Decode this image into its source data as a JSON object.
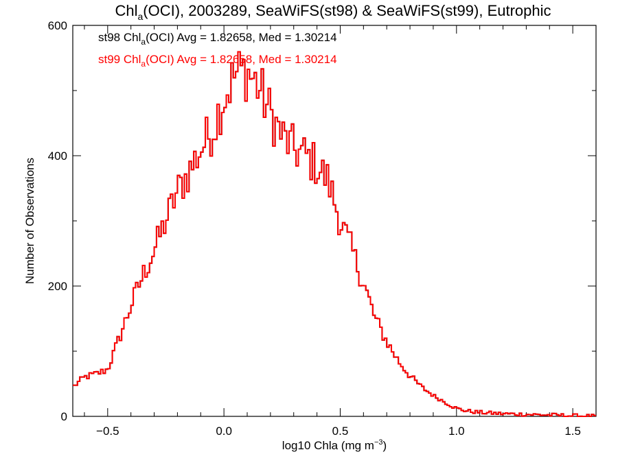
{
  "chart_data": {
    "type": "histogram",
    "title": {
      "prefix": "Chl",
      "sub": "a",
      "suffix": "(OCI), 2003289, SeaWiFS(st98) & SeaWiFS(st99), Eutrophic"
    },
    "xlabel": {
      "prefix": "log10 Chla (mg m",
      "sup": "−3",
      "suffix": ")"
    },
    "ylabel": "Number of Observations",
    "xlim": [
      -0.65,
      1.6
    ],
    "ylim": [
      0,
      600
    ],
    "xticks": [
      -0.5,
      0.0,
      0.5,
      1.0,
      1.5
    ],
    "xtick_labels": [
      "−0.5",
      "0.0",
      "0.5",
      "1.0",
      "1.5"
    ],
    "yticks": [
      0,
      200,
      400,
      600
    ],
    "ytick_labels": [
      "0",
      "200",
      "400",
      "600"
    ],
    "grid": false,
    "annotations": [
      {
        "color": "#000000",
        "prefix": "st98 Chl",
        "sub": "a",
        "suffix": "(OCI) Avg = 1.82658, Med = 1.30214"
      },
      {
        "color": "#ff0000",
        "prefix": "st99 Chl",
        "sub": "a",
        "suffix": "(OCI) Avg = 1.82658, Med = 1.30214"
      }
    ],
    "series": [
      {
        "name": "st98",
        "color": "#000000"
      },
      {
        "name": "st99",
        "color": "#ff0000"
      }
    ],
    "x_anchors": [
      -0.65,
      -0.6,
      -0.55,
      -0.5,
      -0.45,
      -0.4,
      -0.35,
      -0.3,
      -0.25,
      -0.2,
      -0.15,
      -0.1,
      -0.05,
      0.0,
      0.05,
      0.1,
      0.15,
      0.2,
      0.25,
      0.3,
      0.35,
      0.4,
      0.45,
      0.5,
      0.55,
      0.6,
      0.65,
      0.7,
      0.75,
      0.8,
      0.85,
      0.9,
      0.95,
      1.0,
      1.05,
      1.1,
      1.15,
      1.2,
      1.3,
      1.4,
      1.5,
      1.6
    ],
    "y_anchors": [
      45,
      60,
      65,
      72,
      120,
      170,
      215,
      255,
      300,
      345,
      375,
      410,
      440,
      490,
      525,
      530,
      505,
      465,
      430,
      410,
      400,
      385,
      360,
      300,
      255,
      205,
      150,
      115,
      85,
      62,
      45,
      32,
      22,
      12,
      8,
      6,
      5,
      4,
      3,
      2,
      1,
      0
    ]
  }
}
